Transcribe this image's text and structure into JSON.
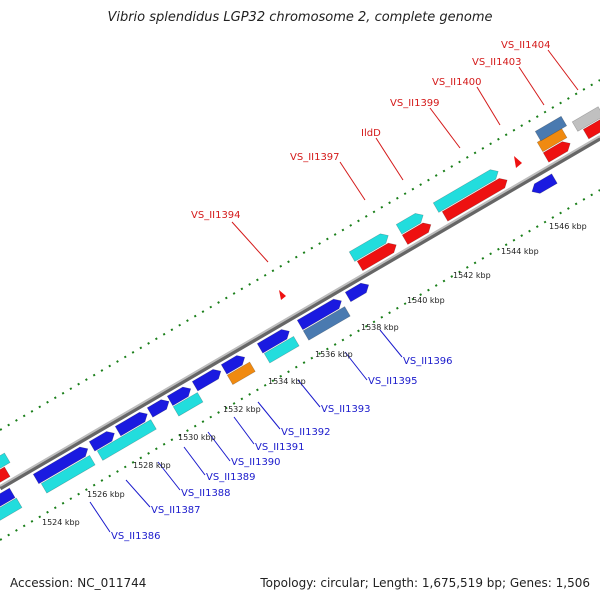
{
  "title": "Vibrio splendidus LGP32 chromosome 2, complete genome",
  "footer": {
    "accession": "Accession: NC_011744",
    "stats": "Topology: circular; Length: 1,675,519 bp; Genes: 1,506"
  },
  "colors": {
    "backbone": "#9a9a9a",
    "tick": "#1a7f1a",
    "upper_label": "#d41a1a",
    "lower_label": "#1a1acc",
    "cds_blue": "#1a1ae0",
    "cds_cyan": "#22dddd",
    "cds_red": "#ee1111",
    "cds_orange": "#f08a10",
    "cds_steel": "#4a7ab0",
    "cds_gray": "#c0c0c0"
  },
  "scale_labels": [
    "1524 kbp",
    "1526 kbp",
    "1528 kbp",
    "1530 kbp",
    "1532 kbp",
    "1534 kbp",
    "1536 kbp",
    "1538 kbp",
    "1540 kbp",
    "1542 kbp",
    "1544 kbp",
    "1546 kbp"
  ],
  "upper_gene_labels": [
    "VS_II1394",
    "VS_II1397",
    "IldD",
    "VS_II1399",
    "VS_II1400",
    "VS_II1403",
    "VS_II1404"
  ],
  "lower_gene_labels": [
    "VS_II1386",
    "VS_II1387",
    "VS_II1388",
    "VS_II1389",
    "VS_II1390",
    "VS_II1391",
    "VS_II1392",
    "VS_II1393",
    "VS_II1395",
    "VS_II1396"
  ]
}
